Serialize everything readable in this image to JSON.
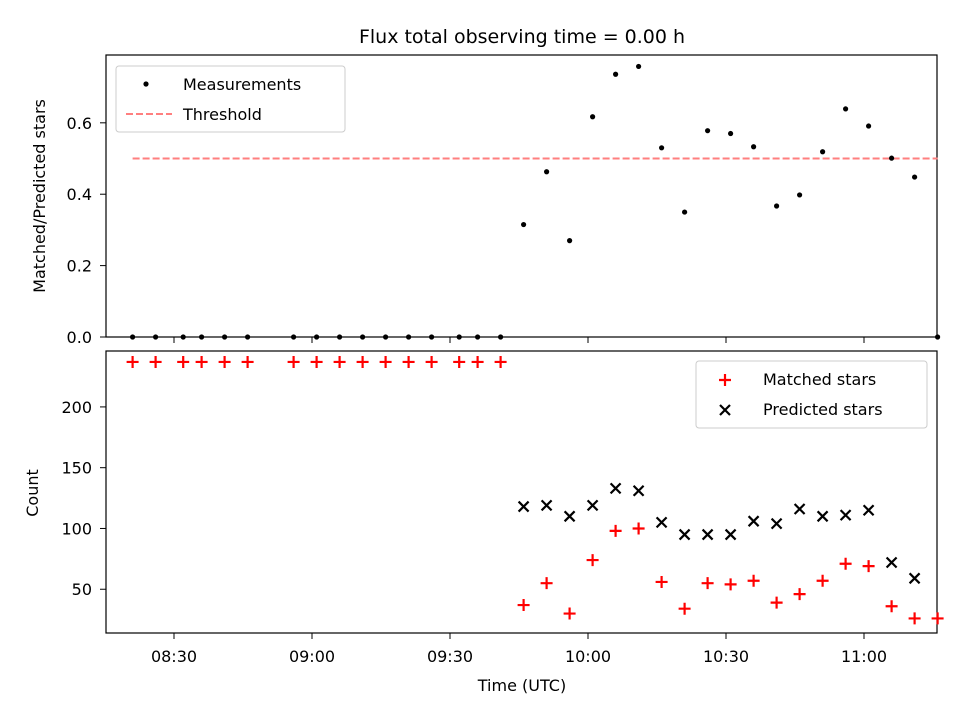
{
  "chart_data": [
    {
      "type": "scatter",
      "title": "Flux total observing time = 0.00 h",
      "xlabel": "",
      "ylabel": "Matched/Predicted stars",
      "ylim": [
        0.0,
        0.79
      ],
      "yticks": [
        "0.0",
        "0.2",
        "0.4",
        "0.6"
      ],
      "legend_position": "top-left",
      "grid": false,
      "series": [
        {
          "name": "Measurements",
          "style": "dot",
          "color": "#000000",
          "x": [
            "08:21",
            "08:26",
            "08:32",
            "08:36",
            "08:41",
            "08:46",
            "08:56",
            "09:01",
            "09:06",
            "09:11",
            "09:16",
            "09:21",
            "09:26",
            "09:32",
            "09:36",
            "09:41",
            "09:46",
            "09:51",
            "09:56",
            "10:01",
            "10:06",
            "10:11",
            "10:16",
            "10:21",
            "10:26",
            "10:31",
            "10:36",
            "10:41",
            "10:46",
            "10:51",
            "10:56",
            "11:01",
            "11:06",
            "11:11",
            "11:16"
          ],
          "y": [
            0,
            0,
            0,
            0,
            0,
            0,
            0,
            0,
            0,
            0,
            0,
            0,
            0,
            0,
            0,
            0,
            0.315,
            0.463,
            0.27,
            0.617,
            0.736,
            0.758,
            0.53,
            0.35,
            0.578,
            0.57,
            0.533,
            0.367,
            0.398,
            0.519,
            0.639,
            0.591,
            0.501,
            0.448,
            0.0
          ]
        },
        {
          "name": "Threshold",
          "style": "dashed-line",
          "color": "#ff7f7f",
          "x": [
            "08:21",
            "11:16"
          ],
          "y": [
            0.5,
            0.5
          ]
        }
      ]
    },
    {
      "type": "scatter",
      "title": "",
      "xlabel": "Time (UTC)",
      "ylabel": "Count",
      "ylim": [
        14,
        246
      ],
      "yticks": [
        "50",
        "100",
        "150",
        "200"
      ],
      "xticks": [
        "08:30",
        "09:00",
        "09:30",
        "10:00",
        "10:30",
        "11:00"
      ],
      "legend_position": "top-right",
      "grid": false,
      "series": [
        {
          "name": "Matched stars",
          "marker": "plus",
          "color": "#ff0000",
          "x": [
            "08:21",
            "08:26",
            "08:32",
            "08:36",
            "08:41",
            "08:46",
            "08:56",
            "09:01",
            "09:06",
            "09:11",
            "09:16",
            "09:21",
            "09:26",
            "09:32",
            "09:36",
            "09:41",
            "09:46",
            "09:51",
            "09:56",
            "10:01",
            "10:06",
            "10:11",
            "10:16",
            "10:21",
            "10:26",
            "10:31",
            "10:36",
            "10:41",
            "10:46",
            "10:51",
            "10:56",
            "11:01",
            "11:06",
            "11:11",
            "11:16"
          ],
          "y": [
            237,
            237,
            237,
            237,
            237,
            237,
            237,
            237,
            237,
            237,
            237,
            237,
            237,
            237,
            237,
            237,
            37,
            55,
            30,
            74,
            98,
            100,
            56,
            34,
            55,
            54,
            57,
            39,
            46,
            57,
            71,
            69,
            36,
            26,
            26
          ]
        },
        {
          "name": "Predicted stars",
          "marker": "x",
          "color": "#000000",
          "x": [
            "09:46",
            "09:51",
            "09:56",
            "10:01",
            "10:06",
            "10:11",
            "10:16",
            "10:21",
            "10:26",
            "10:31",
            "10:36",
            "10:41",
            "10:46",
            "10:51",
            "10:56",
            "11:01",
            "11:06",
            "11:11"
          ],
          "y": [
            118,
            119,
            110,
            119,
            133,
            131,
            105,
            95,
            95,
            95,
            106,
            104,
            116,
            110,
            111,
            115,
            72,
            59
          ]
        }
      ]
    }
  ]
}
